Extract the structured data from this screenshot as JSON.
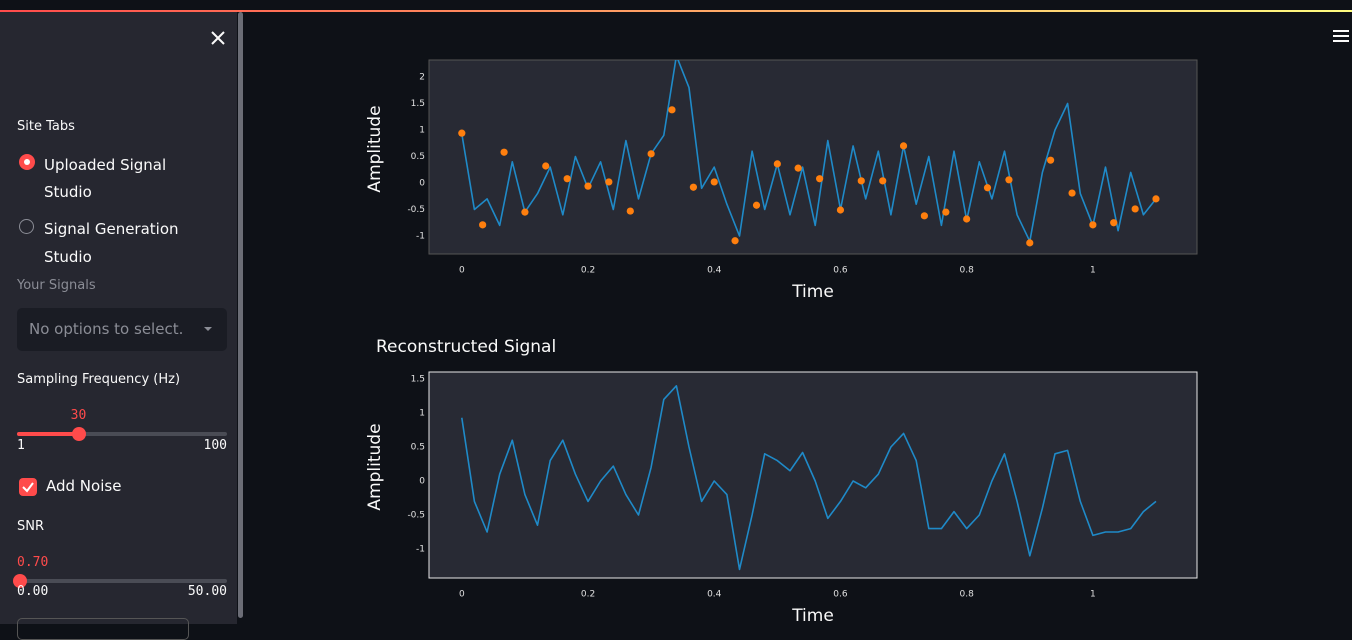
{
  "sidebar": {
    "nav_label": "Site Tabs",
    "options": [
      "Uploaded Signal Studio",
      "Signal Generation Studio"
    ],
    "signals_label": "Your Signals",
    "signals_placeholder": "No options to select.",
    "sampling": {
      "label": "Sampling Frequency (Hz)",
      "value": 30,
      "min": 1,
      "max": 100
    },
    "noise_label": "Add Noise",
    "snr": {
      "label": "SNR",
      "value": "0.70",
      "min": "0.00",
      "max": "50.00"
    }
  },
  "chart_data": [
    {
      "type": "line",
      "xlabel": "Time",
      "ylabel": "Amplitude",
      "xlim": [
        -0.052,
        1.165
      ],
      "ylim": [
        -1.34,
        2.32
      ],
      "xticks": [
        0,
        0.2,
        0.4,
        0.6,
        0.8,
        1
      ],
      "yticks": [
        -1,
        -0.5,
        0,
        0.5,
        1,
        1.5,
        2
      ],
      "grid": false,
      "series": [
        {
          "mode": "lines",
          "color": "#1f8ac8",
          "x": [
            0,
            0.02,
            0.04,
            0.06,
            0.08,
            0.1,
            0.12,
            0.14,
            0.16,
            0.18,
            0.2,
            0.22,
            0.24,
            0.26,
            0.28,
            0.3,
            0.32,
            0.34,
            0.36,
            0.38,
            0.4,
            0.42,
            0.44,
            0.46,
            0.48,
            0.5,
            0.52,
            0.54,
            0.56,
            0.58,
            0.6,
            0.62,
            0.64,
            0.66,
            0.68,
            0.7,
            0.72,
            0.74,
            0.76,
            0.78,
            0.8,
            0.82,
            0.84,
            0.86,
            0.88,
            0.9,
            0.92,
            0.94,
            0.96,
            0.98,
            1,
            1.02,
            1.04,
            1.06,
            1.08,
            1.1
          ],
          "values": [
            0.93,
            -0.5,
            -0.3,
            -0.8,
            0.4,
            -0.55,
            -0.2,
            0.3,
            -0.6,
            0.5,
            -0.1,
            0.4,
            -0.5,
            0.8,
            -0.3,
            0.55,
            0.9,
            2.4,
            1.8,
            -0.1,
            0.3,
            -0.4,
            -1.0,
            0.6,
            -0.5,
            0.36,
            -0.6,
            0.3,
            -0.8,
            0.8,
            -0.5,
            0.7,
            -0.3,
            0.6,
            -0.6,
            0.7,
            -0.4,
            0.5,
            -0.8,
            0.6,
            -0.7,
            0.4,
            -0.3,
            0.6,
            -0.6,
            -1.1,
            0.2,
            1.0,
            1.5,
            -0.2,
            -0.8,
            0.3,
            -0.9,
            0.2,
            -0.6,
            -0.3
          ]
        },
        {
          "mode": "markers",
          "color": "#ff7f0e",
          "x": [
            0,
            0.033,
            0.067,
            0.1,
            0.133,
            0.167,
            0.2,
            0.233,
            0.267,
            0.3,
            0.333,
            0.367,
            0.4,
            0.433,
            0.467,
            0.5,
            0.533,
            0.567,
            0.6,
            0.633,
            0.667,
            0.7,
            0.733,
            0.767,
            0.8,
            0.833,
            0.867,
            0.9,
            0.933,
            0.967,
            1,
            1.033,
            1.067,
            1.1
          ],
          "values": [
            0.94,
            -0.79,
            0.58,
            -0.55,
            0.32,
            0.08,
            -0.06,
            0.02,
            -0.53,
            0.55,
            1.38,
            -0.08,
            0.02,
            -1.09,
            -0.42,
            0.36,
            0.28,
            0.08,
            -0.51,
            0.04,
            0.04,
            0.7,
            -0.62,
            -0.55,
            -0.68,
            -0.09,
            0.06,
            -1.13,
            0.43,
            -0.19,
            -0.79,
            -0.75,
            -0.49,
            -0.3
          ]
        }
      ]
    },
    {
      "type": "line",
      "title": "Reconstructed Signal",
      "xlabel": "Time",
      "ylabel": "Amplitude",
      "xlim": [
        -0.052,
        1.165
      ],
      "ylim": [
        -1.426,
        1.603
      ],
      "xticks": [
        0,
        0.2,
        0.4,
        0.6,
        0.8,
        1
      ],
      "yticks": [
        -1,
        -0.5,
        0,
        0.5,
        1,
        1.5
      ],
      "grid": false,
      "series": [
        {
          "mode": "lines",
          "color": "#1f8ac8",
          "x": [
            0,
            0.02,
            0.04,
            0.06,
            0.08,
            0.1,
            0.12,
            0.14,
            0.16,
            0.18,
            0.2,
            0.22,
            0.24,
            0.26,
            0.28,
            0.3,
            0.32,
            0.34,
            0.36,
            0.38,
            0.4,
            0.42,
            0.44,
            0.46,
            0.48,
            0.5,
            0.52,
            0.54,
            0.56,
            0.58,
            0.6,
            0.62,
            0.64,
            0.66,
            0.68,
            0.7,
            0.72,
            0.74,
            0.76,
            0.78,
            0.8,
            0.82,
            0.84,
            0.86,
            0.88,
            0.9,
            0.92,
            0.94,
            0.96,
            0.98,
            1,
            1.02,
            1.04,
            1.06,
            1.08,
            1.1
          ],
          "values": [
            0.93,
            -0.3,
            -0.75,
            0.1,
            0.6,
            -0.2,
            -0.65,
            0.3,
            0.6,
            0.1,
            -0.3,
            0.0,
            0.22,
            -0.2,
            -0.5,
            0.2,
            1.2,
            1.4,
            0.5,
            -0.3,
            0.0,
            -0.2,
            -1.3,
            -0.5,
            0.4,
            0.3,
            0.15,
            0.42,
            0.0,
            -0.55,
            -0.3,
            0.0,
            -0.1,
            0.1,
            0.5,
            0.7,
            0.3,
            -0.7,
            -0.7,
            -0.45,
            -0.7,
            -0.5,
            0.0,
            0.4,
            -0.3,
            -1.1,
            -0.4,
            0.4,
            0.45,
            -0.3,
            -0.8,
            -0.75,
            -0.75,
            -0.7,
            -0.45,
            -0.3
          ]
        }
      ]
    }
  ]
}
